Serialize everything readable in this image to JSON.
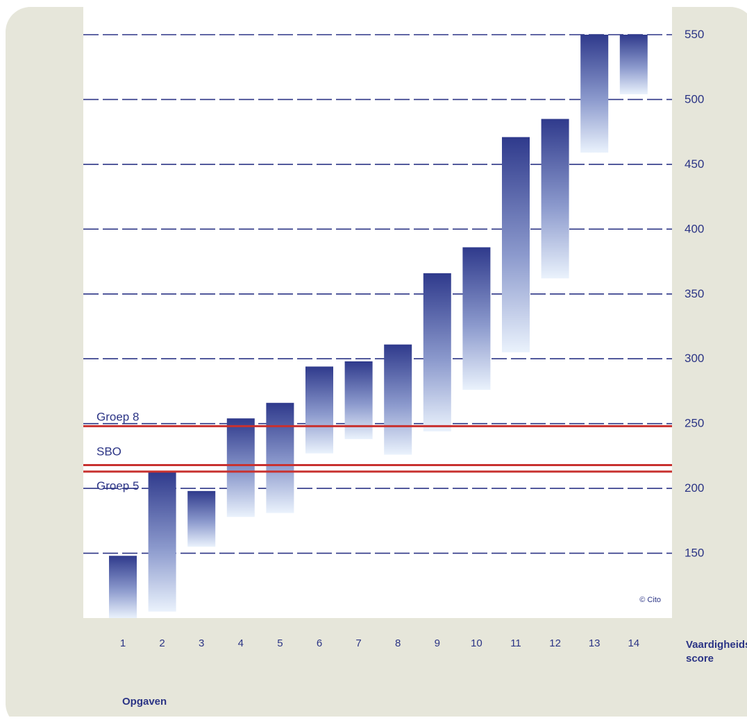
{
  "chart_data": {
    "type": "bar",
    "subtype": "floating-range",
    "categories": [
      "1",
      "2",
      "3",
      "4",
      "5",
      "6",
      "7",
      "8",
      "9",
      "10",
      "11",
      "12",
      "13",
      "14"
    ],
    "ranges": [
      [
        100,
        148
      ],
      [
        105,
        213
      ],
      [
        155,
        198
      ],
      [
        178,
        254
      ],
      [
        181,
        266
      ],
      [
        227,
        294
      ],
      [
        238,
        298
      ],
      [
        226,
        311
      ],
      [
        244,
        366
      ],
      [
        276,
        386
      ],
      [
        305,
        471
      ],
      [
        362,
        485
      ],
      [
        459,
        550
      ],
      [
        504,
        550
      ]
    ],
    "ylim": [
      100,
      550
    ],
    "yticks": [
      150,
      200,
      250,
      300,
      350,
      400,
      450,
      500,
      550
    ],
    "ylabel": "Vaardigheids-\nscore",
    "xlabel": "Opgaven",
    "reference_lines": [
      {
        "label": "Groep 8",
        "value": 248,
        "color": "#c8312f"
      },
      {
        "label": "SBO",
        "value": 218,
        "color": "#c8312f"
      },
      {
        "label": "Groep 5",
        "value": 213,
        "color": "#c8312f"
      }
    ],
    "annotation": "© Cito",
    "grid": "dashed horizontal",
    "colors": {
      "bar_top": "#2f3a8c",
      "bar_bottom": "#eaf2fc",
      "grid": "#2b3485",
      "text": "#2b3485",
      "frame": "#e6e6da",
      "plot_bg": "#ffffff"
    }
  }
}
